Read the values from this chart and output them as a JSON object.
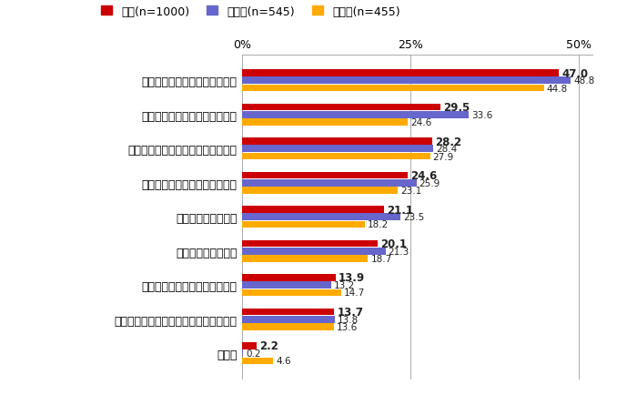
{
  "categories": [
    "困ったときに助け合えるチーム",
    "メンバー同士が仲の良いチーム",
    "コミュニケーションが活発なチーム",
    "互いに学べて成長できるチーム",
    "自由度の高いチーム",
    "元気で明るいチーム",
    "リーダーの統率が効いたチーム",
    "高い目標に一丸となって取り組むチーム",
    "その他"
  ],
  "series": {
    "全体(n=1000)": [
      47.0,
      29.5,
      28.2,
      24.6,
      21.1,
      20.1,
      13.9,
      13.7,
      2.2
    ],
    "満足群(n=545)": [
      48.8,
      33.6,
      28.4,
      25.9,
      23.5,
      21.3,
      13.2,
      13.8,
      0.2
    ],
    "不満群(n=455)": [
      44.8,
      24.6,
      27.9,
      23.1,
      18.2,
      18.7,
      14.7,
      13.6,
      4.6
    ]
  },
  "colors": {
    "全体(n=1000)": "#CC0000",
    "満足群(n=545)": "#6666CC",
    "不満群(n=455)": "#FFAA00"
  },
  "value_fontweight": {
    "全体(n=1000)": "bold",
    "満足群(n=545)": "normal",
    "不満群(n=455)": "normal"
  },
  "value_fontsize": {
    "全体(n=1000)": 8.5,
    "満足群(n=545)": 7.5,
    "不満群(n=455)": 7.5
  },
  "xlim": [
    0,
    52
  ],
  "xticks": [
    0,
    25,
    50
  ],
  "xticklabels": [
    "0%",
    "25%",
    "50%"
  ],
  "bar_height": 0.22,
  "background_color": "#ffffff",
  "label_fontsize": 9,
  "legend_fontsize": 9
}
